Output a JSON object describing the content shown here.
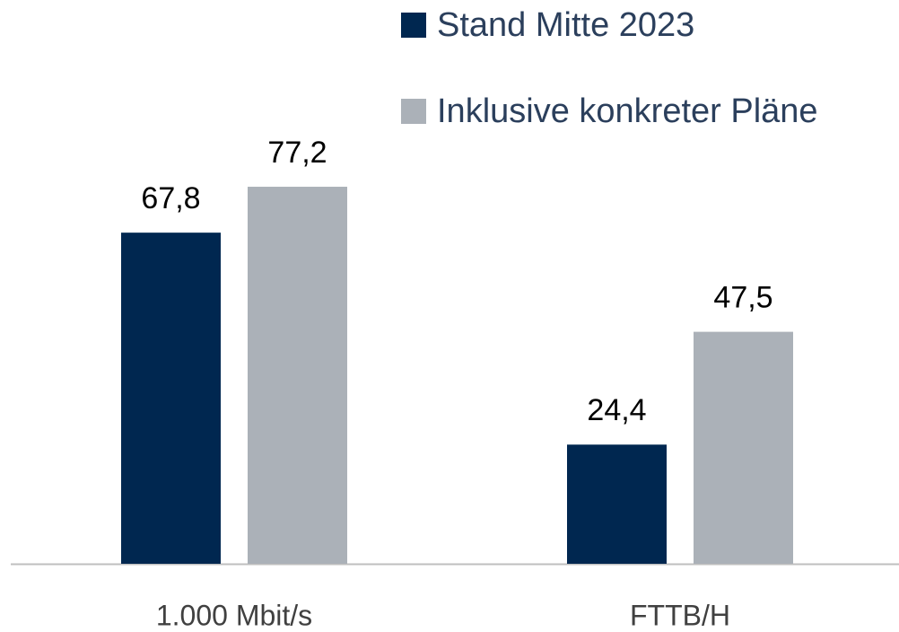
{
  "chart_data": {
    "type": "bar",
    "categories": [
      "1.000 Mbit/s",
      "FTTB/H"
    ],
    "series": [
      {
        "name": "Stand Mitte 2023",
        "color": "#002750",
        "values": [
          67.8,
          24.4
        ],
        "value_labels": [
          "67,8",
          "24,4"
        ]
      },
      {
        "name": "Inklusive konkreter Pläne",
        "color": "#abb1b8",
        "values": [
          77.2,
          47.5
        ],
        "value_labels": [
          "77,2",
          "47,5"
        ]
      }
    ],
    "ylim": [
      0,
      100
    ]
  }
}
